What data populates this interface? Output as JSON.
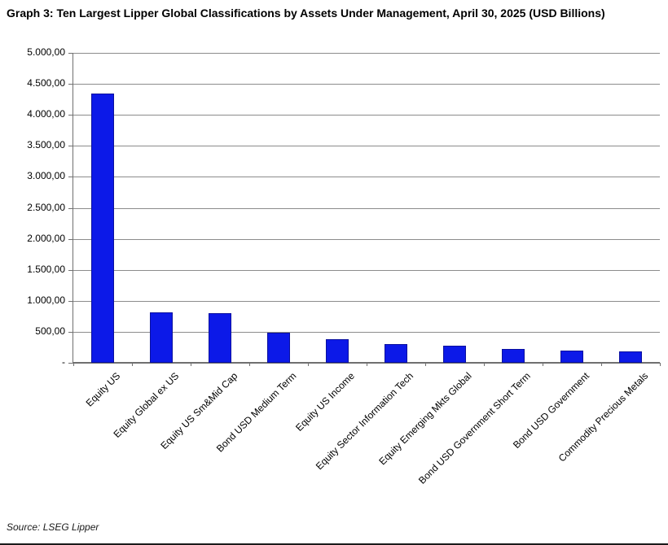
{
  "title": "Graph 3: Ten Largest Lipper Global Classifications by Assets Under Management, April 30, 2025 (USD Billions)",
  "source": "Source: LSEG Lipper",
  "colors": {
    "bar_fill": "#0c19e8",
    "bar_border": "#0a109e",
    "gridline": "#8c8c8c",
    "axis": "#707070",
    "text": "#000000"
  },
  "chart_data": {
    "type": "bar",
    "title": "Graph 3: Ten Largest Lipper Global Classifications by Assets Under Management, April 30, 2025 (USD Billions)",
    "categories": [
      "Equity US",
      "Equity Global ex US",
      "Equity US Sm&Mid Cap",
      "Bond USD Medium Term",
      "Equity US Income",
      "Equity Sector Information Tech",
      "Equity Emerging Mkts Global",
      "Bond USD Government Short Term",
      "Bond USD Government",
      "Commodity Precious Metals"
    ],
    "values": [
      4350,
      810,
      800,
      490,
      375,
      300,
      275,
      220,
      195,
      190
    ],
    "xlabel": "",
    "ylabel": "",
    "ylim": [
      0,
      5000
    ],
    "ytick_interval": 500,
    "ytick_labels_bottom_to_top": [
      "-",
      "500,00",
      "1.000,00",
      "1.500,00",
      "2.000,00",
      "2.500,00",
      "3.000,00",
      "3.500,00",
      "4.000,00",
      "4.500,00",
      "5.000,00"
    ],
    "grid": true,
    "legend": false,
    "number_format": "european",
    "source": "Source: LSEG Lipper"
  }
}
